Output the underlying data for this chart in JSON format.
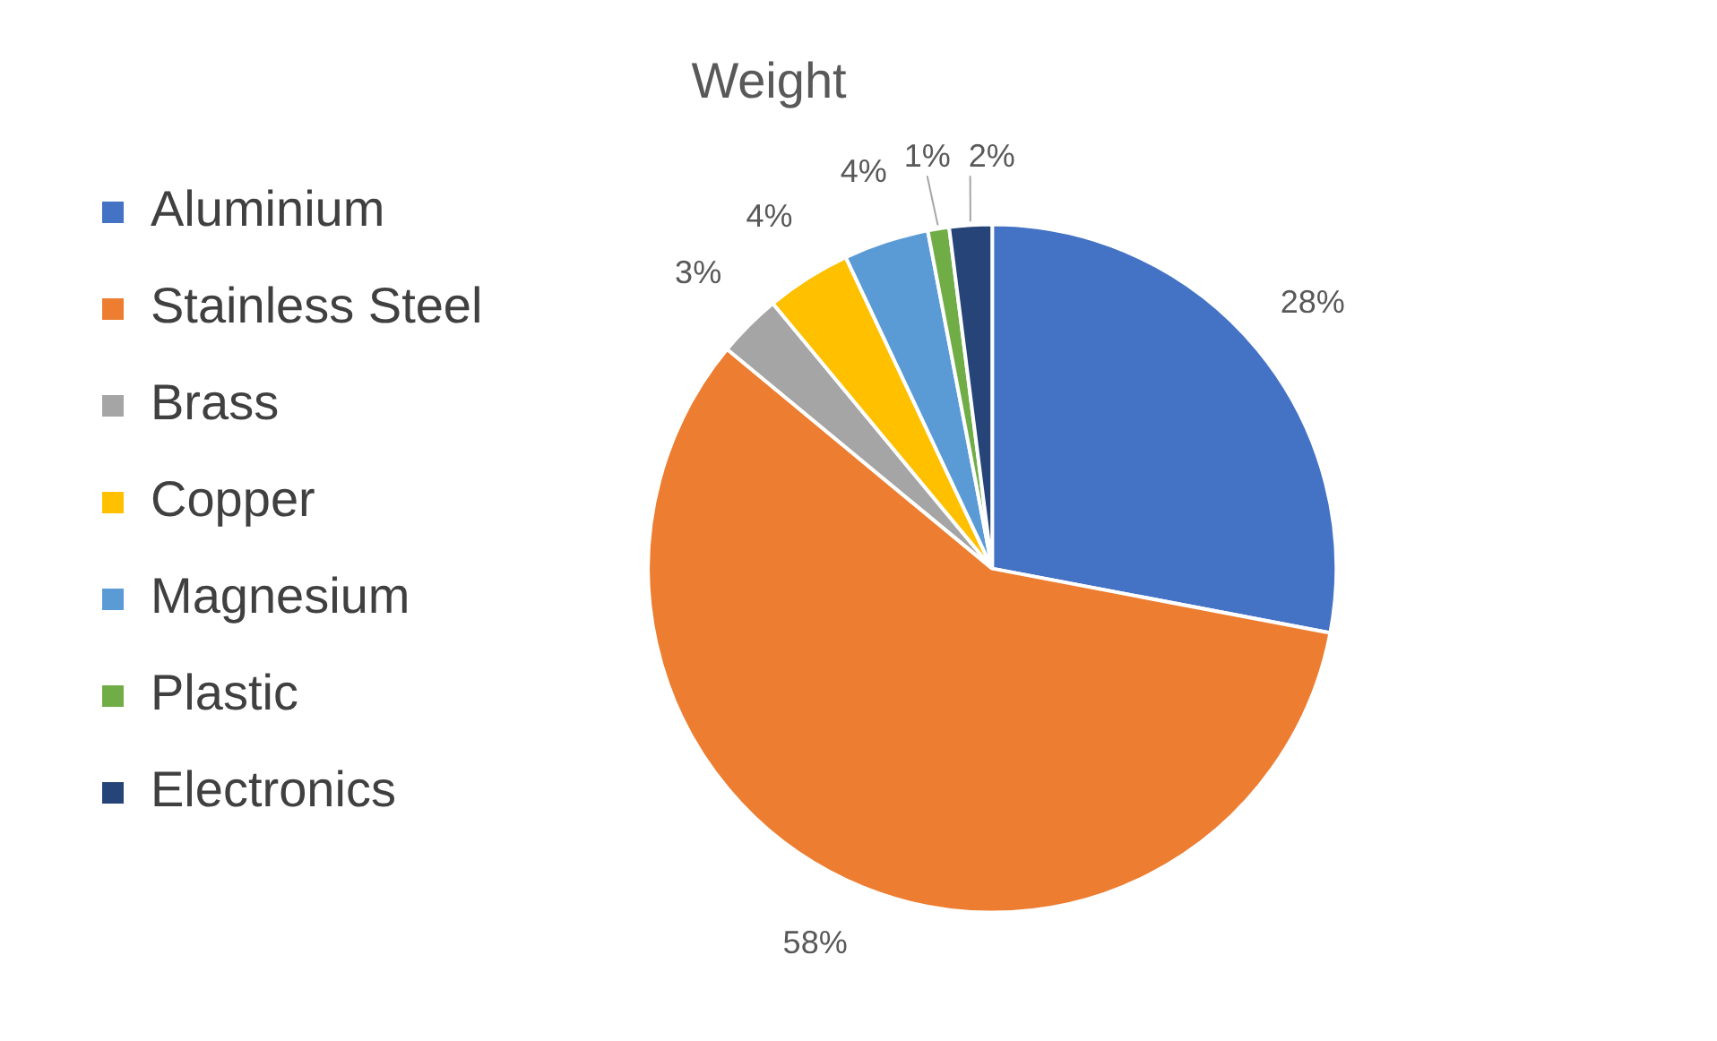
{
  "chart_data": {
    "type": "pie",
    "title": "Weight",
    "categories": [
      "Aluminium",
      "Stainless Steel",
      "Brass",
      "Copper",
      "Magnesium",
      "Plastic",
      "Electronics"
    ],
    "values": [
      28,
      58,
      3,
      4,
      4,
      1,
      2
    ],
    "value_labels": [
      "28%",
      "58%",
      "3%",
      "4%",
      "4%",
      "1%",
      "2%"
    ],
    "colors": [
      "#4472c4",
      "#ed7d31",
      "#a5a5a5",
      "#ffc000",
      "#5b9bd5",
      "#70ad47",
      "#264478"
    ],
    "legend": "left"
  }
}
